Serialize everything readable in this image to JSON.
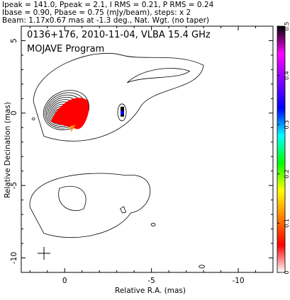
{
  "header": {
    "line1": "Ipeak = 141.0, Ppeak = 2.1, I RMS = 0.21, P RMS = 0.24",
    "line2": "Ibase = 0.90, Pbase = 0.75 (mJy/beam), steps: x 2",
    "line3": "Beam: 1.17x0.67 mas at -1.3 deg., Nat. Wgt. (no taper)"
  },
  "chart_data": {
    "type": "heatmap",
    "title": "0136+176, 2010-11-04, VLBA 15.4 GHz",
    "subtitle": "MOJAVE Program",
    "xlabel": "Relative R.A. (mas)",
    "ylabel": "Relative Decination (mas)",
    "xlim": [
      2.5,
      -12
    ],
    "ylim": [
      -11,
      6
    ],
    "x_ticks": [
      0,
      -5,
      -10
    ],
    "x_tick_labels": [
      "0",
      "-5",
      "-10"
    ],
    "y_ticks": [
      5,
      0,
      -5,
      -10
    ],
    "y_tick_labels": [
      "5",
      "0",
      "-5",
      "-10"
    ],
    "colorbar": {
      "range": [
        0,
        0.5
      ],
      "ticks": [
        0,
        0.1,
        0.2,
        0.3,
        0.4,
        0.5
      ],
      "tick_labels": [
        "0",
        "0.1",
        "0.2",
        "0.3",
        "0.4",
        "0.5"
      ],
      "colors": [
        "#ffffff",
        "#ff0000",
        "#ff7f00",
        "#ffff00",
        "#00ff00",
        "#00ffff",
        "#0000ff",
        "#8000ff",
        "#ff00ff",
        "#000000"
      ]
    },
    "core": {
      "x": 0.0,
      "y": 0.0
    },
    "components": [
      {
        "x": -3.3,
        "y": 0.0
      },
      {
        "x": -1.0,
        "y": -5.8
      }
    ]
  }
}
